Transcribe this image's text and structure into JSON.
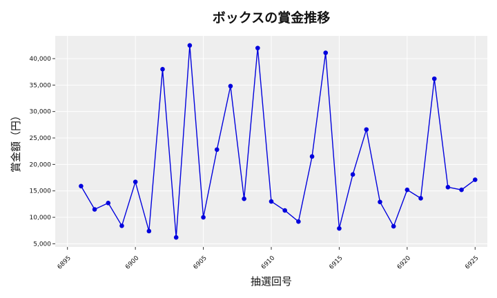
{
  "chart_data": {
    "type": "line",
    "title": "ボックスの賞金推移",
    "xlabel": "抽選回号",
    "ylabel": "賞金額（円）",
    "xlim": [
      6894.1,
      6925.9
    ],
    "ylim": [
      4400,
      44300
    ],
    "grid": true,
    "x_ticks": [
      6895,
      6900,
      6905,
      6910,
      6915,
      6920,
      6925
    ],
    "y_ticks": [
      5000,
      10000,
      15000,
      20000,
      25000,
      30000,
      35000,
      40000
    ],
    "y_tick_labels": [
      "5,000",
      "10,000",
      "15,000",
      "20,000",
      "25,000",
      "30,000",
      "35,000",
      "40,000"
    ],
    "series": [
      {
        "color": "#0000dd",
        "x": [
          6896,
          6897,
          6898,
          6899,
          6900,
          6901,
          6902,
          6903,
          6904,
          6905,
          6906,
          6907,
          6908,
          6909,
          6910,
          6911,
          6912,
          6913,
          6914,
          6915,
          6916,
          6917,
          6918,
          6919,
          6920,
          6921,
          6922,
          6923,
          6924,
          6925
        ],
        "values": [
          15900,
          11500,
          12700,
          8400,
          16700,
          7400,
          38000,
          6200,
          42500,
          10000,
          22800,
          34800,
          13500,
          42000,
          13000,
          11300,
          9200,
          21500,
          41100,
          7900,
          18100,
          26600,
          12900,
          8300,
          15200,
          13600,
          36200,
          15700,
          15200,
          17100
        ]
      }
    ]
  }
}
